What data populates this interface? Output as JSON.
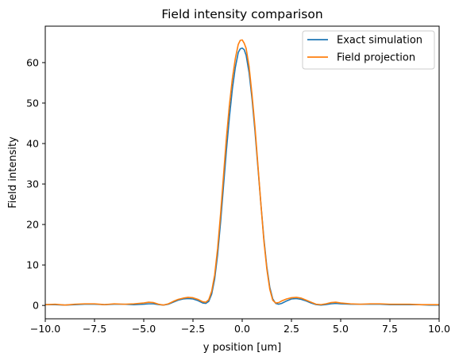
{
  "chart_data": {
    "type": "line",
    "title": "Field intensity comparison",
    "xlabel": "y position [um]",
    "ylabel": "Field intensity",
    "xlim": [
      -10,
      10
    ],
    "ylim": [
      -3.3,
      69
    ],
    "xticks": [
      {
        "value": -10,
        "label": "−10.0"
      },
      {
        "value": -7.5,
        "label": "−7.5"
      },
      {
        "value": -5,
        "label": "−5.0"
      },
      {
        "value": -2.5,
        "label": "−2.5"
      },
      {
        "value": 0,
        "label": "0.0"
      },
      {
        "value": 2.5,
        "label": "2.5"
      },
      {
        "value": 5,
        "label": "5.0"
      },
      {
        "value": 7.5,
        "label": "7.5"
      },
      {
        "value": 10,
        "label": "10.0"
      }
    ],
    "yticks": [
      {
        "value": 0,
        "label": "0"
      },
      {
        "value": 10,
        "label": "10"
      },
      {
        "value": 20,
        "label": "20"
      },
      {
        "value": 30,
        "label": "30"
      },
      {
        "value": 40,
        "label": "40"
      },
      {
        "value": 50,
        "label": "50"
      },
      {
        "value": 60,
        "label": "60"
      }
    ],
    "grid": false,
    "legend_position": "top-right",
    "series": [
      {
        "name": "Exact simulation",
        "color": "#1f77b4",
        "x": [
          -10,
          -9.5,
          -9,
          -8.5,
          -8,
          -7.5,
          -7,
          -6.5,
          -6,
          -5.5,
          -5,
          -4.75,
          -4.5,
          -4.25,
          -4,
          -3.75,
          -3.5,
          -3.25,
          -3,
          -2.75,
          -2.5,
          -2.25,
          -2,
          -1.85,
          -1.7,
          -1.55,
          -1.4,
          -1.25,
          -1.1,
          -0.95,
          -0.8,
          -0.65,
          -0.5,
          -0.35,
          -0.2,
          -0.1,
          0,
          0.1,
          0.2,
          0.35,
          0.5,
          0.65,
          0.8,
          0.95,
          1.1,
          1.25,
          1.4,
          1.55,
          1.7,
          1.85,
          2,
          2.25,
          2.5,
          2.75,
          3,
          3.25,
          3.5,
          3.75,
          4,
          4.25,
          4.5,
          4.75,
          5,
          5.5,
          6,
          6.5,
          7,
          7.5,
          8,
          8.5,
          9,
          9.5,
          10
        ],
        "y": [
          0.2,
          0.2,
          0.1,
          0.2,
          0.3,
          0.3,
          0.2,
          0.3,
          0.3,
          0.2,
          0.3,
          0.4,
          0.4,
          0.2,
          0.1,
          0.3,
          0.8,
          1.3,
          1.6,
          1.7,
          1.6,
          1.2,
          0.6,
          0.5,
          1,
          2.8,
          6.5,
          12.5,
          20.5,
          29.5,
          38.5,
          46.5,
          53.5,
          58.8,
          62.5,
          63.4,
          63.6,
          63.2,
          61.8,
          57.5,
          51,
          43,
          34,
          25,
          16.5,
          9.5,
          4.5,
          1.6,
          0.5,
          0.3,
          0.5,
          1.1,
          1.6,
          1.7,
          1.5,
          1.1,
          0.6,
          0.2,
          0.1,
          0.2,
          0.4,
          0.5,
          0.4,
          0.3,
          0.3,
          0.3,
          0.3,
          0.2,
          0.2,
          0.2,
          0.2,
          0.1,
          0.1
        ]
      },
      {
        "name": "Field projection",
        "color": "#ff7f0e",
        "x": [
          -10,
          -9.5,
          -9,
          -8.5,
          -8,
          -7.5,
          -7,
          -6.5,
          -6,
          -5.5,
          -5,
          -4.75,
          -4.5,
          -4.25,
          -4,
          -3.75,
          -3.5,
          -3.25,
          -3,
          -2.75,
          -2.5,
          -2.25,
          -2,
          -1.85,
          -1.7,
          -1.55,
          -1.4,
          -1.25,
          -1.1,
          -0.95,
          -0.8,
          -0.65,
          -0.5,
          -0.35,
          -0.2,
          -0.1,
          0,
          0.1,
          0.2,
          0.35,
          0.5,
          0.65,
          0.8,
          0.95,
          1.1,
          1.25,
          1.4,
          1.55,
          1.7,
          1.85,
          2,
          2.25,
          2.5,
          2.75,
          3,
          3.25,
          3.5,
          3.75,
          4,
          4.25,
          4.5,
          4.75,
          5,
          5.5,
          6,
          6.5,
          7,
          7.5,
          8,
          8.5,
          9,
          9.5,
          10
        ],
        "y": [
          0.2,
          0.3,
          0.1,
          0.3,
          0.4,
          0.4,
          0.2,
          0.4,
          0.3,
          0.4,
          0.6,
          0.8,
          0.7,
          0.3,
          0.1,
          0.4,
          1,
          1.5,
          1.8,
          2,
          1.9,
          1.5,
          0.9,
          0.8,
          1.4,
          3.5,
          7.5,
          14,
          22.5,
          32,
          41.5,
          49.5,
          56,
          61,
          64.5,
          65.5,
          65.6,
          64.8,
          63.5,
          59,
          52,
          44,
          34.5,
          25,
          16,
          9,
          4,
          1.3,
          0.6,
          0.7,
          1.1,
          1.6,
          1.9,
          2,
          1.8,
          1.3,
          0.8,
          0.3,
          0.2,
          0.4,
          0.7,
          0.8,
          0.6,
          0.4,
          0.3,
          0.4,
          0.4,
          0.3,
          0.3,
          0.3,
          0.2,
          0.2,
          0.2
        ]
      }
    ]
  }
}
